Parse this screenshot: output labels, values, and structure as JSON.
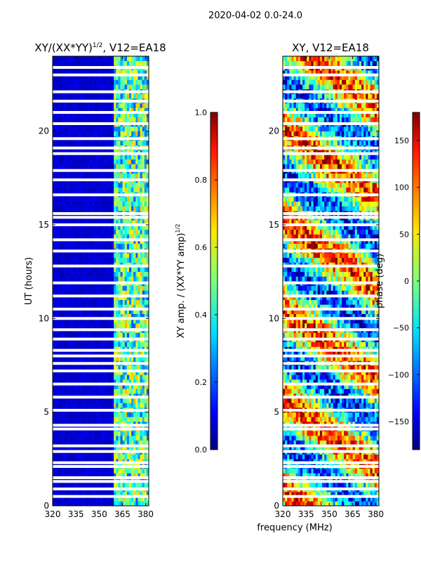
{
  "figure": {
    "suptitle": "2020-04-02 0.0-24.0",
    "shared_xlabel": "frequency (MHz)"
  },
  "chart_data": [
    {
      "type": "heatmap",
      "title_main": "XY/(XX*YY)",
      "title_sup": "1/2",
      "title_tail": ", V12=EA18",
      "xlabel": "",
      "ylabel": "UT (hours)",
      "xlim": [
        320,
        382
      ],
      "ylim": [
        0,
        24
      ],
      "xticks": [
        320,
        335,
        350,
        365,
        380
      ],
      "yticks": [
        0,
        5,
        10,
        15,
        20
      ],
      "colormap": "jet",
      "colorbar": {
        "label_main": "XY amp. / (XX*YY amp)",
        "label_sup": "1/2",
        "range": [
          0.0,
          1.0
        ],
        "ticks": [
          "0.0",
          "0.2",
          "0.4",
          "0.6",
          "0.8",
          "1.0"
        ]
      },
      "value_baseline": 0.05,
      "bright_freq_range": [
        360,
        382
      ],
      "blank_rows_ut": [
        23.0,
        23.4,
        22.1,
        21.6,
        21.0,
        20.4,
        19.6,
        19.1,
        18.8,
        17.9,
        17.4,
        16.6,
        15.6,
        15.4,
        15.0,
        14.2,
        13.6,
        12.8,
        11.9,
        11.2,
        10.5,
        10.0,
        9.4,
        8.9,
        8.3,
        8.0,
        7.6,
        7.2,
        6.5,
        5.8,
        5.1,
        4.3,
        4.1,
        3.2,
        2.9,
        2.3,
        2.1,
        1.5,
        1.3,
        0.9,
        0.5
      ]
    },
    {
      "type": "heatmap",
      "title_main": "XY, V12=EA18",
      "xlabel": "",
      "ylabel": "",
      "xlim": [
        320,
        382
      ],
      "ylim": [
        0,
        24
      ],
      "xticks": [
        320,
        335,
        350,
        365,
        380
      ],
      "yticks": [
        0,
        5,
        10,
        15,
        20
      ],
      "colormap": "jet",
      "colorbar": {
        "label_main": "phase (deg)",
        "range": [
          -180,
          180
        ],
        "ticks": [
          "-150",
          "-100",
          "-50",
          "0",
          "50",
          "100",
          "150"
        ]
      },
      "blank_rows_ut": [
        23.0,
        23.4,
        22.1,
        21.6,
        21.0,
        20.4,
        19.6,
        19.1,
        18.8,
        17.9,
        17.4,
        16.6,
        15.6,
        15.4,
        15.0,
        14.2,
        13.6,
        12.8,
        11.9,
        11.2,
        10.5,
        10.0,
        9.4,
        8.9,
        8.3,
        8.0,
        7.6,
        7.2,
        6.5,
        5.8,
        5.1,
        4.3,
        4.1,
        3.2,
        2.9,
        2.3,
        2.1,
        1.5,
        1.3,
        0.9,
        0.5
      ]
    }
  ]
}
